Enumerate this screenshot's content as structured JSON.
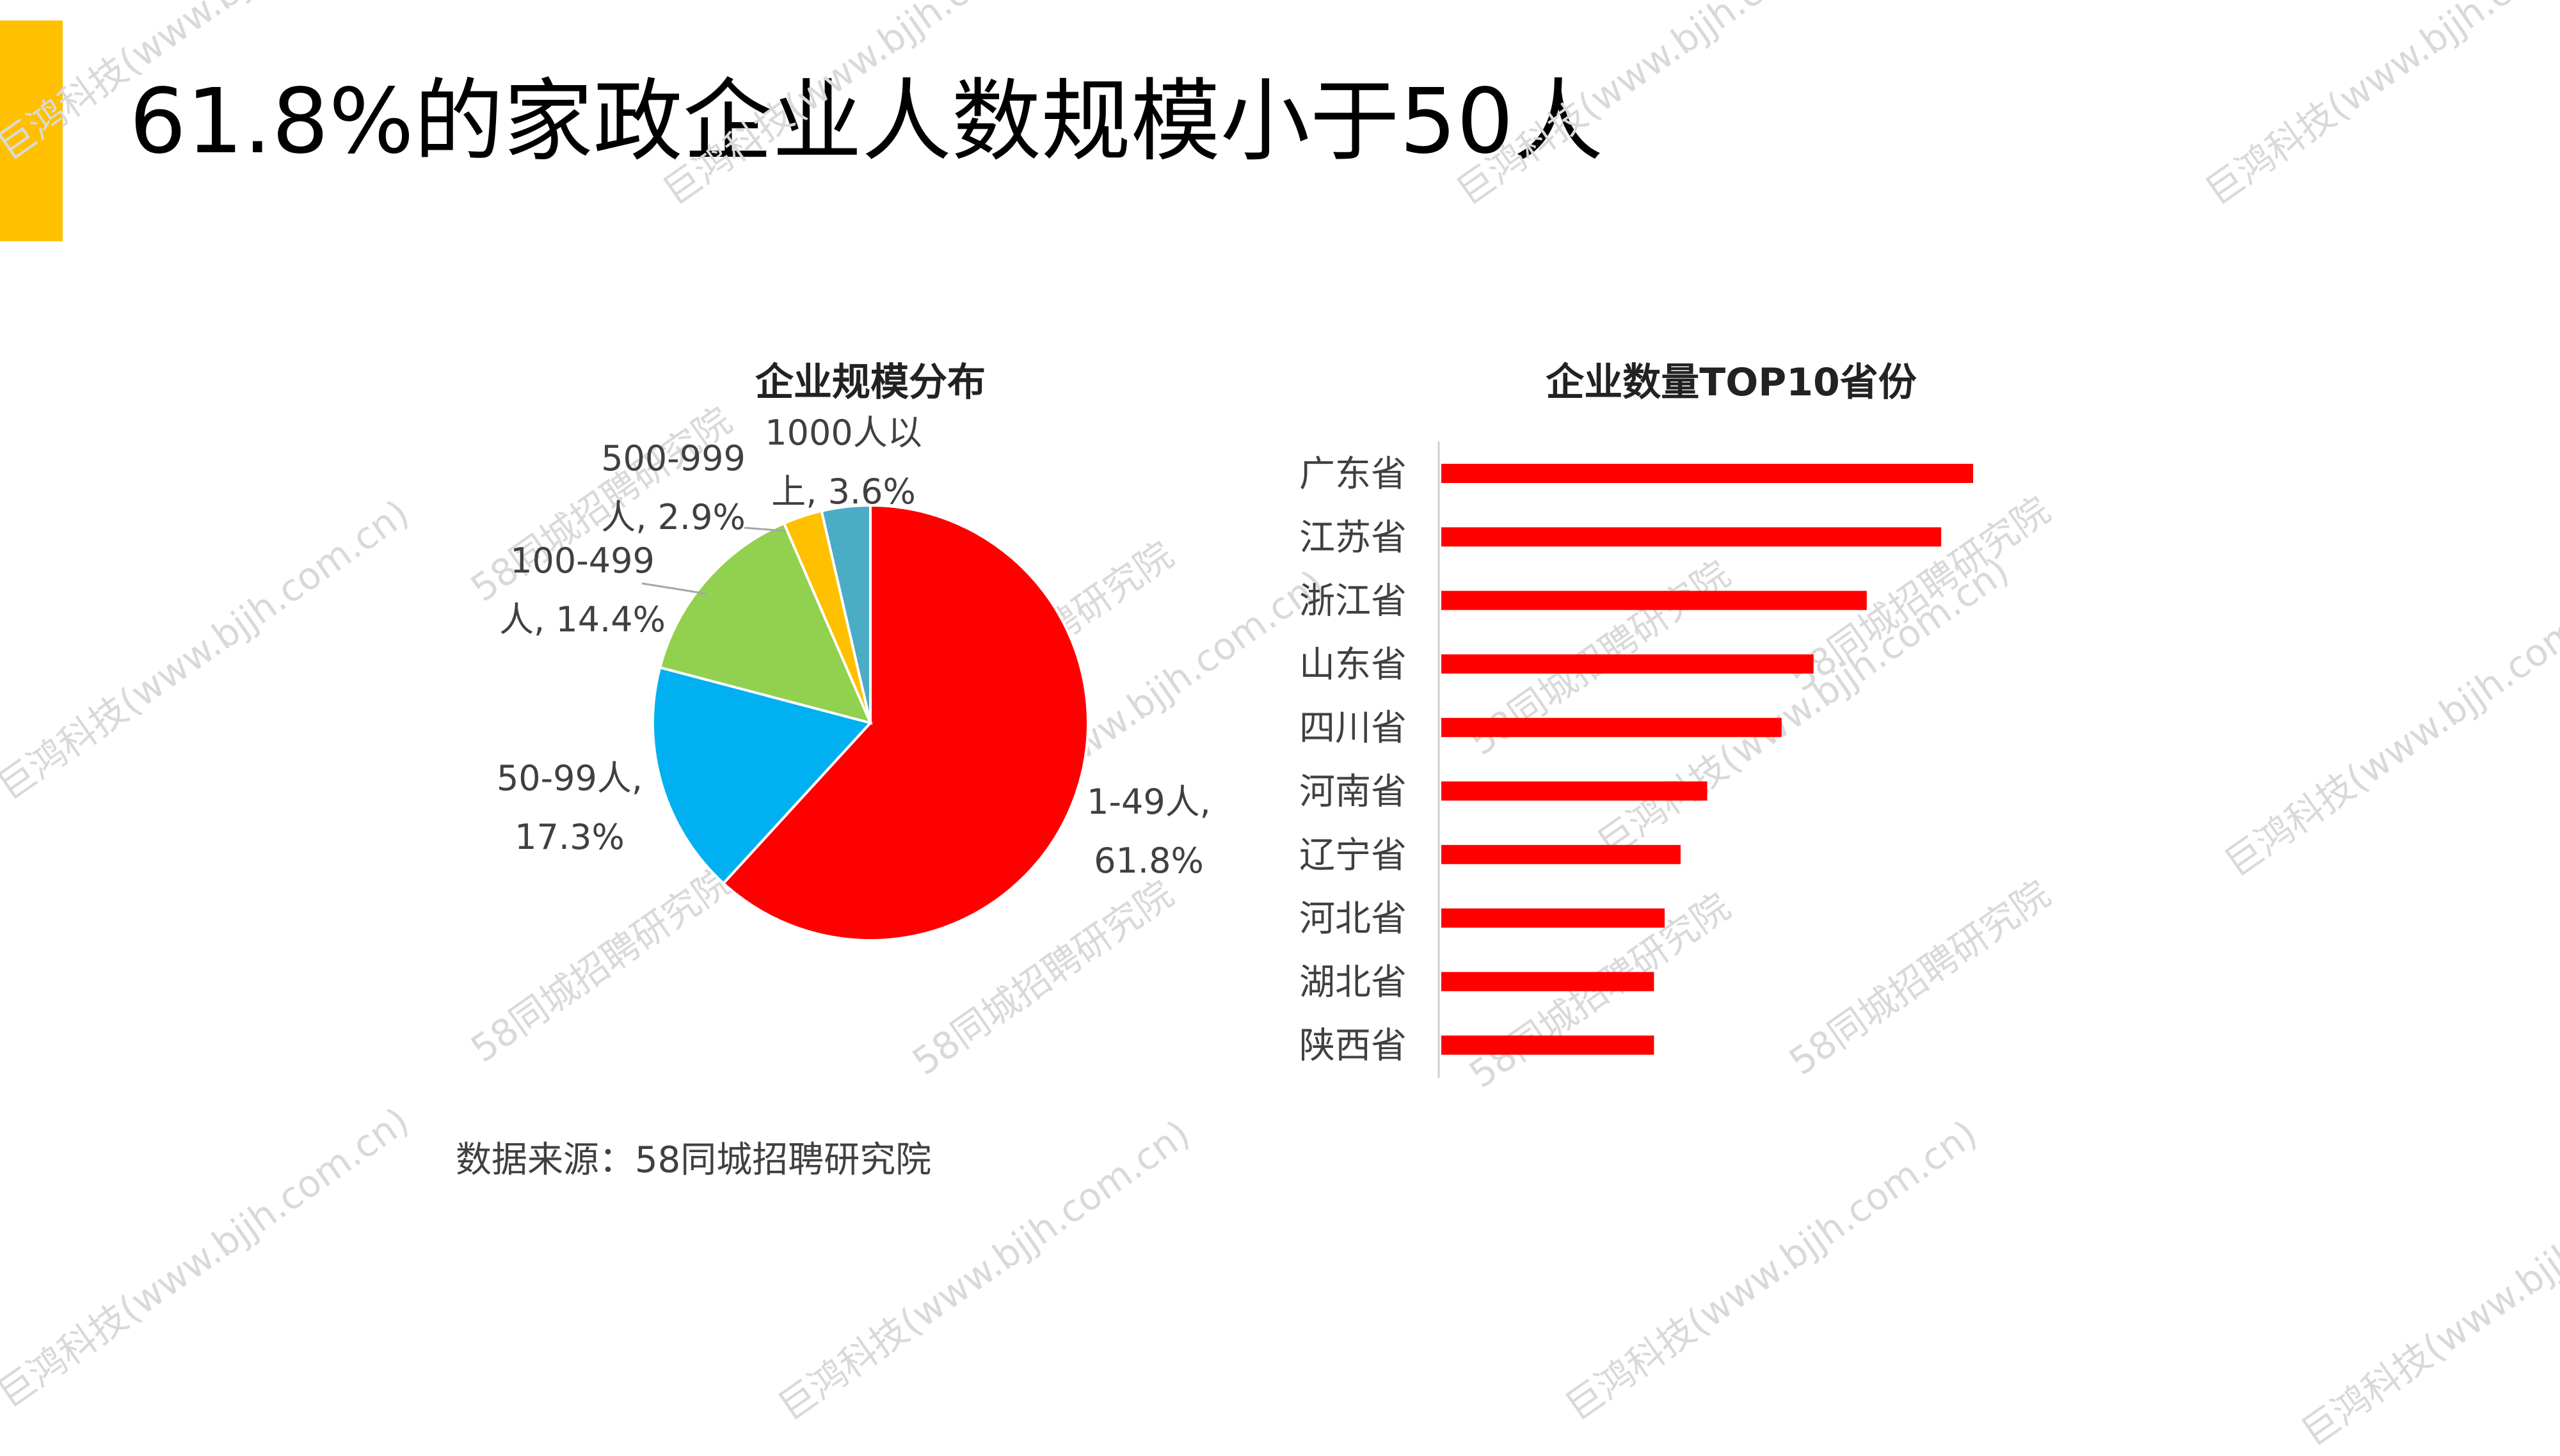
{
  "title": "61.8%的家政企业人数规模小于50人",
  "source": "数据来源：58同城招聘研究院",
  "watermarks": [
    "巨鸿科技(www.bjjh.com.cn)",
    "58同城招聘研究院"
  ],
  "colors": {
    "accent": "#FFC000",
    "bar": "#FF0000",
    "pie": [
      "#FF0000",
      "#00B0F0",
      "#92D050",
      "#FFC000",
      "#4BACC6"
    ]
  },
  "chart_data": [
    {
      "type": "pie",
      "title": "企业规模分布",
      "slices": [
        {
          "label_lines": [
            "1-49人,",
            "61.8%"
          ],
          "value": 61.8
        },
        {
          "label_lines": [
            "50-99人,",
            "17.3%"
          ],
          "value": 17.3
        },
        {
          "label_lines": [
            "100-499",
            "人, 14.4%"
          ],
          "value": 14.4
        },
        {
          "label_lines": [
            "500-999",
            "人, 2.9%"
          ],
          "value": 2.9
        },
        {
          "label_lines": [
            "1000人以",
            "上, 3.6%"
          ],
          "value": 3.6
        }
      ]
    },
    {
      "type": "bar",
      "orientation": "horizontal",
      "title": "企业数量TOP10省份",
      "categories": [
        "广东省",
        "江苏省",
        "浙江省",
        "山东省",
        "四川省",
        "河南省",
        "辽宁省",
        "河北省",
        "湖北省",
        "陕西省"
      ],
      "values": [
        100,
        94,
        80,
        70,
        64,
        50,
        45,
        42,
        40,
        40
      ]
    }
  ]
}
